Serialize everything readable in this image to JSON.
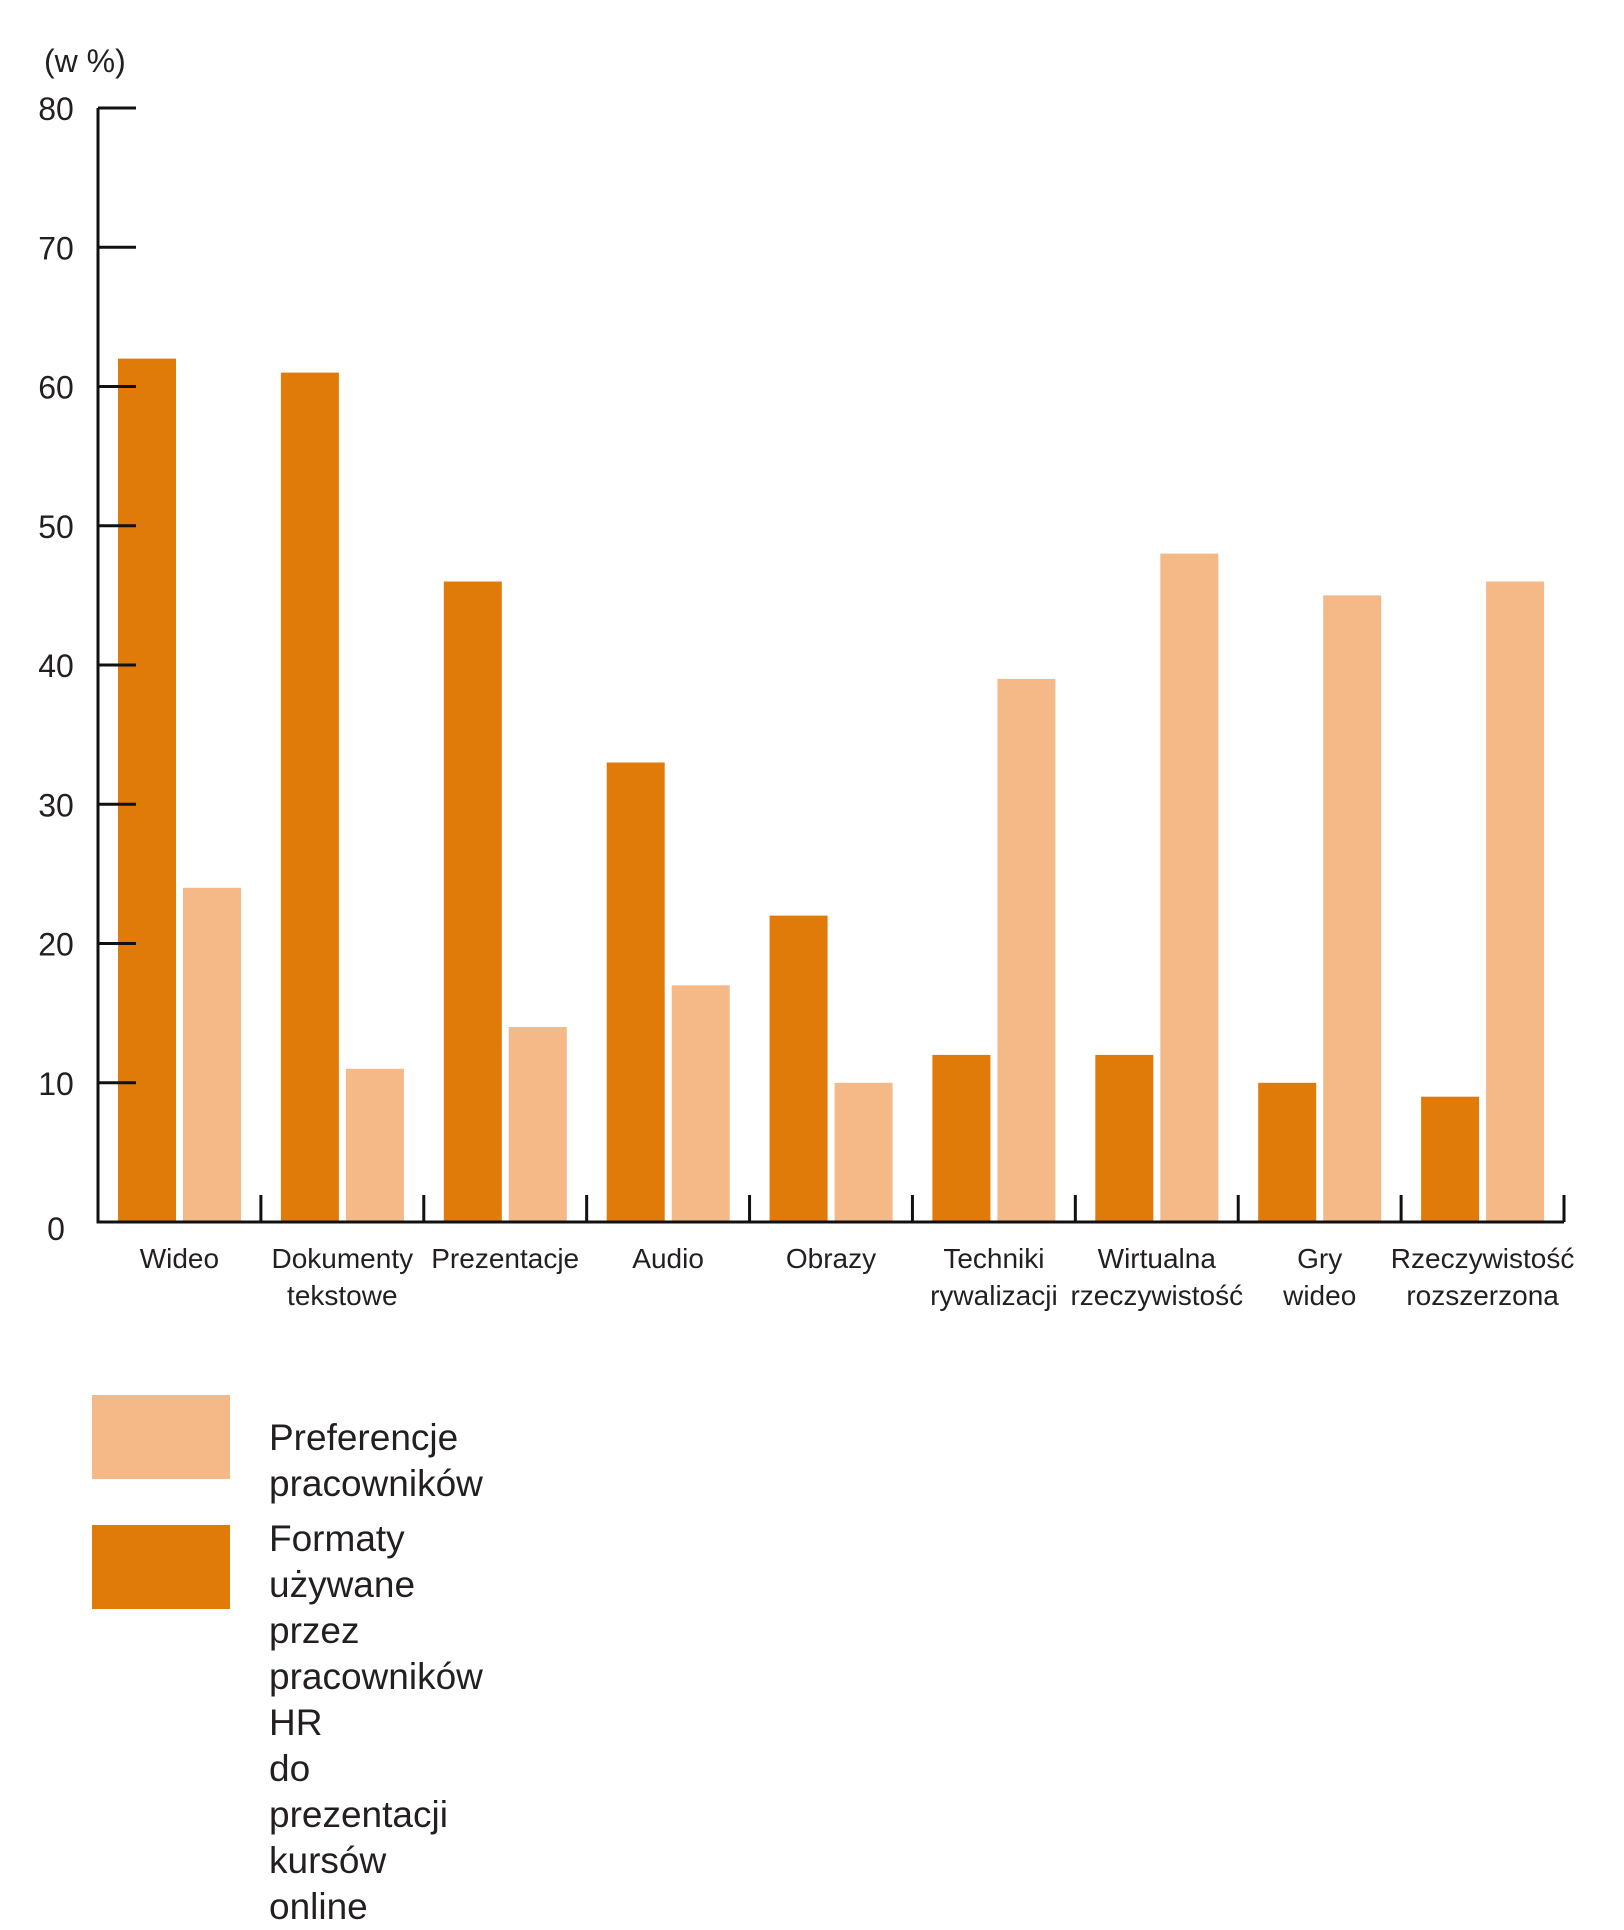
{
  "chart_data": {
    "type": "bar",
    "unit_label": "(w %)",
    "ylim": [
      0,
      80
    ],
    "yticks": [
      0,
      10,
      20,
      30,
      40,
      50,
      60,
      70,
      80
    ],
    "grid": false,
    "categories": [
      "Wideo",
      "Dokumenty\ntekstowe",
      "Prezentacje",
      "Audio",
      "Obrazy",
      "Techniki\nrywalizacji",
      "Wirtualna\nrzeczywistość",
      "Gry\nwideo",
      "Rzeczywistość\nrozszerzona"
    ],
    "series": [
      {
        "name": "Formaty używane przez pracowników HR\ndo prezentacji kursów online",
        "color": "#e07b0a",
        "values": [
          62,
          61,
          46,
          33,
          22,
          12,
          12,
          10,
          9
        ]
      },
      {
        "name": "Preferencje pracowników",
        "color": "#f5b987",
        "values": [
          24,
          11,
          14,
          17,
          10,
          39,
          48,
          45,
          46
        ]
      }
    ],
    "legend_position": "bottom-left"
  },
  "legend": [
    {
      "label": "Preferencje pracowników",
      "color": "#f5b987"
    },
    {
      "label": "Formaty używane przez pracowników HR\ndo prezentacji kursów online",
      "color": "#e07b0a"
    }
  ]
}
